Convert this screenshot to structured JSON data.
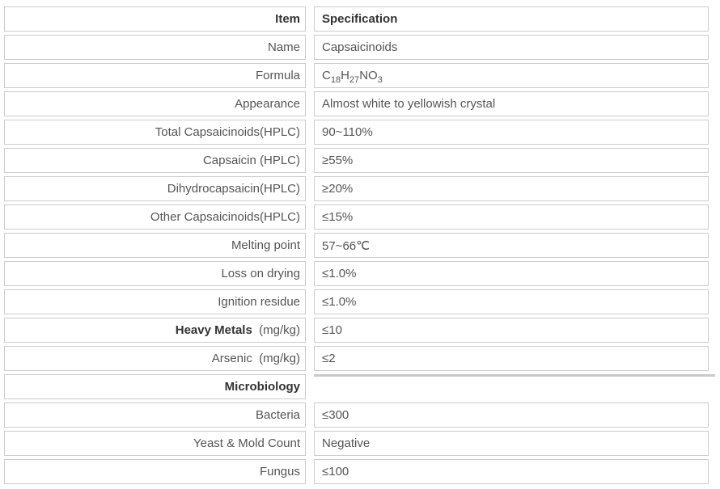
{
  "colors": {
    "border": "#cccccc",
    "text": "#555555",
    "bold_text": "#333333",
    "section_divider": "#c9c9c9",
    "background": "#ffffff"
  },
  "table": {
    "rows": [
      {
        "header": true,
        "item": "Item",
        "spec": "Specification"
      },
      {
        "item": "Name",
        "spec": "Capsaicinoids"
      },
      {
        "item": "Formula",
        "spec_formula": [
          {
            "t": "C"
          },
          {
            "t": "18",
            "sub": true
          },
          {
            "t": "H"
          },
          {
            "t": "27",
            "sub": true
          },
          {
            "t": "NO"
          },
          {
            "t": "3",
            "sub": true
          }
        ]
      },
      {
        "item": "Appearance",
        "spec": "Almost white to yellowish crystal"
      },
      {
        "item": "Total Capsaicinoids(HPLC)",
        "spec": "90~110%"
      },
      {
        "item": "Capsaicin (HPLC)",
        "spec": "≥55%"
      },
      {
        "item": "Dihydrocapsaicin(HPLC)",
        "spec": "≥20%"
      },
      {
        "item": "Other Capsaicinoids(HPLC)",
        "spec": "≤15%"
      },
      {
        "item": "Melting point",
        "spec": "57~66℃"
      },
      {
        "item": "Loss on drying",
        "spec": "≤1.0%"
      },
      {
        "item": "Ignition residue",
        "spec": "≤1.0%"
      },
      {
        "item_bold": "Heavy Metals",
        "item": "  (mg/kg)",
        "spec": "≤10"
      },
      {
        "item": "Arsenic  (mg/kg)",
        "spec": "≤2"
      },
      {
        "item_bold": "Microbiology",
        "item": "",
        "spec": null,
        "spec_topline": true
      },
      {
        "item": "Bacteria",
        "spec": "≤300"
      },
      {
        "item": "Yeast & Mold Count",
        "spec": "Negative"
      },
      {
        "item": "Fungus",
        "spec": "≤100"
      }
    ]
  }
}
